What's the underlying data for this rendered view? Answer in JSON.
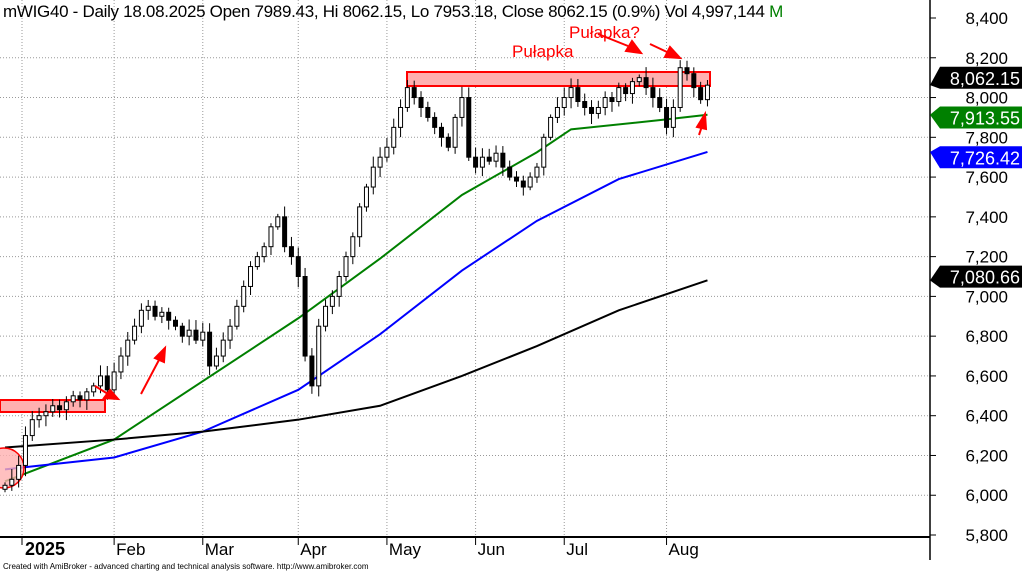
{
  "header": {
    "title": "mWIG40 - Daily 18.08.2025 Open 7989.43, Hi 8062.15, Lo 7953.18, Close 8062.15 (0.9%) Vol 4,997,144",
    "suffix": "M"
  },
  "footer": "Created with AmiBroker - advanced charting and technical analysis software. http://www.amibroker.com",
  "annotations": {
    "label1": "Pułapka",
    "label2": "Pułapka?"
  },
  "colors": {
    "up": "#ffffff",
    "down": "#000000",
    "ma50": "#008000",
    "ma100": "#0000ff",
    "ma200": "#000000",
    "annotation": "#ff0000",
    "zone": "#ffb0b0"
  },
  "chart_data": {
    "type": "candlestick",
    "title": "mWIG40 - Daily",
    "ylim": [
      5800,
      8400
    ],
    "yticks": [
      5800,
      6000,
      6200,
      6400,
      6600,
      6800,
      7000,
      7200,
      7400,
      7600,
      7800,
      8000,
      8200,
      8400
    ],
    "ytick_labels": [
      "5,800",
      "6,000",
      "6,200",
      "6,400",
      "6,600",
      "6,800",
      "7,000",
      "7,200",
      "7,400",
      "7,600",
      "7,800",
      "8,000",
      "8,200",
      "8,400"
    ],
    "xticks": [
      {
        "label": "2025",
        "index": 2
      },
      {
        "label": "Feb",
        "index": 16
      },
      {
        "label": "Mar",
        "index": 29
      },
      {
        "label": "Apr",
        "index": 43
      },
      {
        "label": "May",
        "index": 56
      },
      {
        "label": "Jun",
        "index": 69
      },
      {
        "label": "Jul",
        "index": 82
      },
      {
        "label": "Aug",
        "index": 97
      }
    ],
    "closes": [
      6050,
      6080,
      6150,
      6300,
      6380,
      6400,
      6420,
      6450,
      6430,
      6470,
      6500,
      6480,
      6520,
      6550,
      6600,
      6530,
      6620,
      6700,
      6780,
      6850,
      6930,
      6950,
      6900,
      6920,
      6880,
      6850,
      6800,
      6830,
      6780,
      6820,
      6650,
      6700,
      6780,
      6850,
      6950,
      7050,
      7150,
      7200,
      7250,
      7350,
      7400,
      7250,
      7200,
      7100,
      6700,
      6550,
      6850,
      6950,
      7000,
      7100,
      7200,
      7300,
      7450,
      7550,
      7650,
      7700,
      7750,
      7850,
      7950,
      8050,
      8000,
      7950,
      7900,
      7850,
      7800,
      7750,
      7900,
      8000,
      7700,
      7650,
      7700,
      7680,
      7720,
      7650,
      7600,
      7580,
      7550,
      7600,
      7650,
      7800,
      7900,
      7950,
      8000,
      8050,
      7980,
      7950,
      7920,
      7950,
      8000,
      7980,
      8050,
      8020,
      8080,
      8100,
      8050,
      8000,
      7950,
      7850,
      7950,
      8150,
      8120,
      8050,
      7989.43,
      8062.15
    ],
    "series": [
      {
        "name": "MA50",
        "color": "#008000",
        "last": "7,913.55",
        "points": [
          [
            0,
            6070
          ],
          [
            16,
            6280
          ],
          [
            43,
            6890
          ],
          [
            55,
            7190
          ],
          [
            67,
            7510
          ],
          [
            78,
            7725
          ],
          [
            83,
            7840
          ],
          [
            97,
            7890
          ],
          [
            103,
            7913.55
          ]
        ]
      },
      {
        "name": "MA100",
        "color": "#0000ff",
        "last": "7,726.42",
        "points": [
          [
            0,
            6130
          ],
          [
            16,
            6190
          ],
          [
            29,
            6320
          ],
          [
            43,
            6530
          ],
          [
            55,
            6810
          ],
          [
            67,
            7130
          ],
          [
            78,
            7380
          ],
          [
            90,
            7590
          ],
          [
            103,
            7726.42
          ]
        ]
      },
      {
        "name": "MA200",
        "color": "#000000",
        "last": "7,080.66",
        "points": [
          [
            0,
            6240
          ],
          [
            16,
            6280
          ],
          [
            29,
            6320
          ],
          [
            43,
            6380
          ],
          [
            55,
            6450
          ],
          [
            67,
            6600
          ],
          [
            78,
            6750
          ],
          [
            90,
            6930
          ],
          [
            103,
            7080.66
          ]
        ]
      }
    ],
    "last_close_label": "8,062.15"
  }
}
